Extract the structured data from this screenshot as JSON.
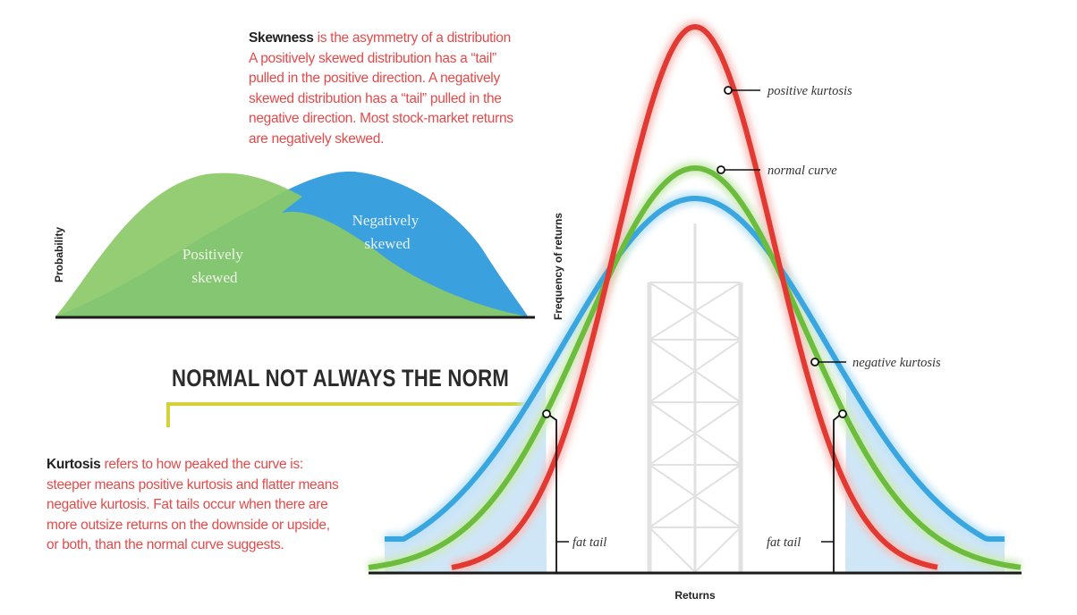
{
  "skewness": {
    "term": "Skewness",
    "lines": [
      " is the asymmetry of a distribution",
      "A positively skewed distribution has a “tail”",
      "pulled in the positive direction. A negatively",
      "skewed distribution has a “tail” pulled in the",
      "negative direction. Most stock-market returns",
      "are negatively skewed."
    ]
  },
  "kurtosis": {
    "term": "Kurtosis",
    "lines": [
      " refers to how peaked the curve is:",
      "steeper means positive kurtosis and flatter means",
      "negative kurtosis. Fat tails occur when there are",
      "more outsize returns on the downside or upside,",
      "or both, than the normal curve suggests."
    ]
  },
  "headline": "NORMAL NOT ALWAYS THE NORM",
  "skew_chart": {
    "ylabel": "Probability",
    "positive_label": [
      "Positively",
      "skewed"
    ],
    "negative_label": [
      "Negatively",
      "skewed"
    ]
  },
  "kurt_chart": {
    "ylabel": "Frequency of returns",
    "xlabel": "Returns",
    "labels": {
      "positive": "positive kurtosis",
      "normal": "normal curve",
      "negative": "negative kurtosis",
      "fat_tail_left": "fat tail",
      "fat_tail_right": "fat tail"
    }
  },
  "colors": {
    "positive_kurtosis": "#e23a32",
    "normal_curve": "#6cbd3e",
    "negative_kurtosis": "#3aa6e0",
    "positive_skew_fill": "#8cc968",
    "negative_skew_fill": "#3aa1de",
    "accent_bar": "#d4d23a",
    "body_text": "#e44a4a"
  }
}
